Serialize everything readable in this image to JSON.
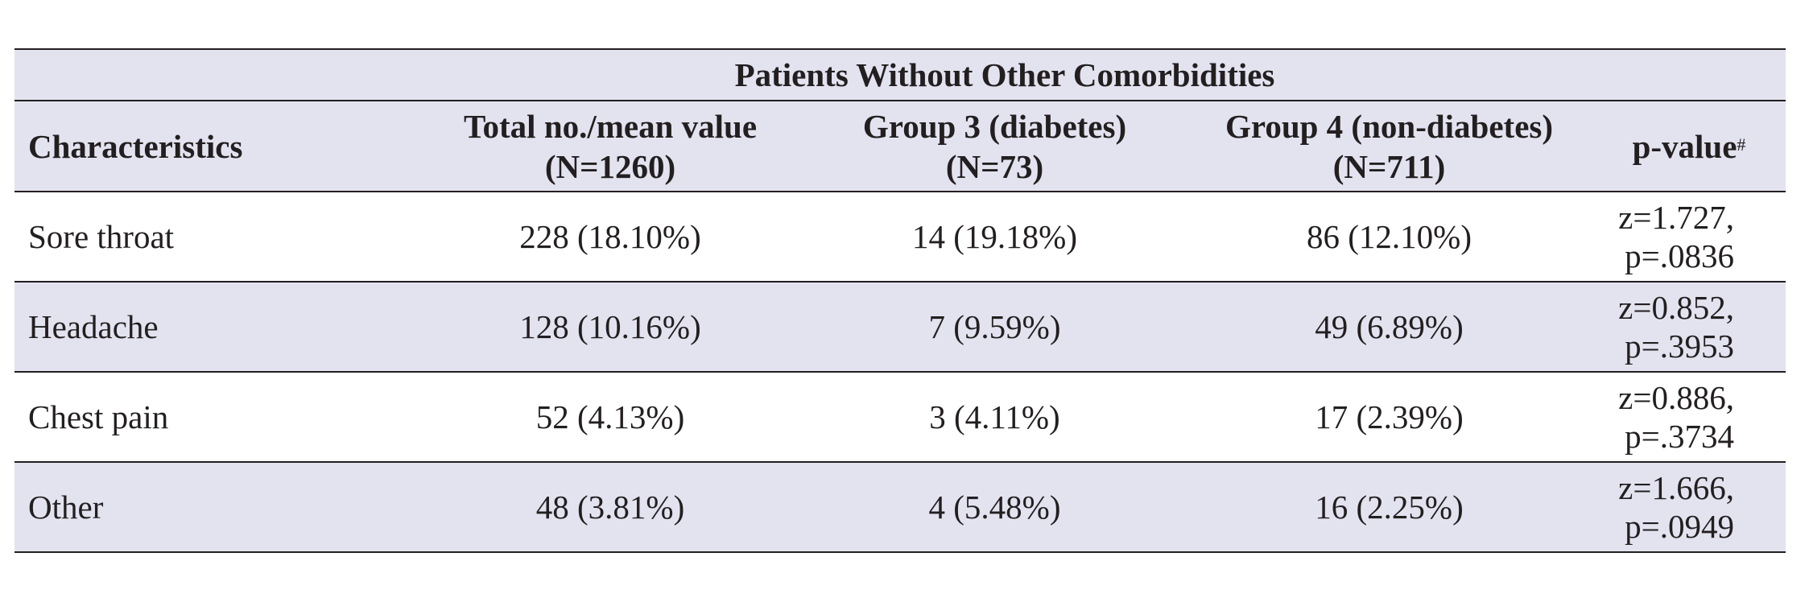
{
  "table": {
    "group_header": "Patients Without Other Comorbidities",
    "columns": {
      "characteristics": "Characteristics",
      "total_line1": "Total no./mean value",
      "total_line2": "(N=1260)",
      "group3_line1": "Group 3 (diabetes)",
      "group3_line2": "(N=73)",
      "group4_line1": "Group 4 (non-diabetes)",
      "group4_line2": "(N=711)",
      "pvalue": "p-value",
      "pvalue_sup": "#"
    },
    "rows": [
      {
        "characteristic": "Sore throat",
        "total": "228 (18.10%)",
        "group3": "14 (19.18%)",
        "group4": "86 (12.10%)",
        "z": "z=1.727,",
        "p": "p=.0836"
      },
      {
        "characteristic": "Headache",
        "total": "128 (10.16%)",
        "group3": "7 (9.59%)",
        "group4": "49 (6.89%)",
        "z": "z=0.852,",
        "p": "p=.3953"
      },
      {
        "characteristic": "Chest pain",
        "total": "52 (4.13%)",
        "group3": "3 (4.11%)",
        "group4": "17 (2.39%)",
        "z": "z=0.886,",
        "p": "p=.3734"
      },
      {
        "characteristic": "Other",
        "total": "48 (3.81%)",
        "group3": "4 (5.48%)",
        "group4": "16 (2.25%)",
        "z": "z=1.666,",
        "p": "p=.0949"
      }
    ],
    "colors": {
      "shade": "#e3e3f0",
      "text": "#231f20",
      "rule": "#231f20"
    }
  }
}
